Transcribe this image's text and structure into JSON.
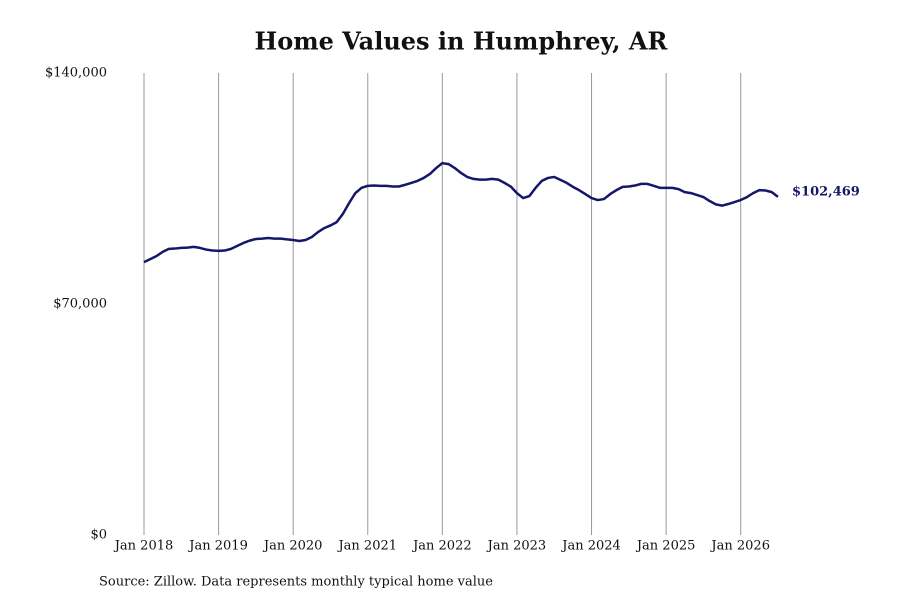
{
  "chart_data": {
    "type": "line",
    "title": "Home Values in Humphrey, AR",
    "source": "Source: Zillow. Data represents monthly typical home value",
    "x": [
      "2018-01",
      "2018-02",
      "2018-03",
      "2018-04",
      "2018-05",
      "2018-06",
      "2018-07",
      "2018-08",
      "2018-09",
      "2018-10",
      "2018-11",
      "2018-12",
      "2019-01",
      "2019-02",
      "2019-03",
      "2019-04",
      "2019-05",
      "2019-06",
      "2019-07",
      "2019-08",
      "2019-09",
      "2019-10",
      "2019-11",
      "2019-12",
      "2020-01",
      "2020-02",
      "2020-03",
      "2020-04",
      "2020-05",
      "2020-06",
      "2020-07",
      "2020-08",
      "2020-09",
      "2020-10",
      "2020-11",
      "2020-12",
      "2021-01",
      "2021-02",
      "2021-03",
      "2021-04",
      "2021-05",
      "2021-06",
      "2021-07",
      "2021-08",
      "2021-09",
      "2021-10",
      "2021-11",
      "2021-12",
      "2022-01",
      "2022-02",
      "2022-03",
      "2022-04",
      "2022-05",
      "2022-06",
      "2022-07",
      "2022-08",
      "2022-09",
      "2022-10",
      "2022-11",
      "2022-12",
      "2023-01",
      "2023-02",
      "2023-03",
      "2023-04",
      "2023-05",
      "2023-06",
      "2023-07",
      "2023-08",
      "2023-09",
      "2023-10",
      "2023-11",
      "2023-12",
      "2024-01",
      "2024-02",
      "2024-03",
      "2024-04",
      "2024-05",
      "2024-06",
      "2024-07",
      "2024-08",
      "2024-09",
      "2024-10",
      "2024-11",
      "2024-12",
      "2025-01",
      "2025-02",
      "2025-03",
      "2025-04",
      "2025-05",
      "2025-06",
      "2025-07",
      "2025-08",
      "2025-09",
      "2025-10",
      "2025-11",
      "2025-12",
      "2026-01",
      "2026-02",
      "2026-03",
      "2026-04",
      "2026-05",
      "2026-06",
      "2026-07"
    ],
    "series": [
      {
        "color": "#16166a",
        "values": [
          82700,
          83600,
          84500,
          85800,
          86700,
          86800,
          87000,
          87100,
          87300,
          87000,
          86500,
          86200,
          86100,
          86200,
          86700,
          87600,
          88500,
          89200,
          89700,
          89800,
          90000,
          89800,
          89800,
          89600,
          89400,
          89100,
          89400,
          90300,
          91800,
          93000,
          93800,
          94800,
          97300,
          100600,
          103600,
          105200,
          105800,
          105900,
          105800,
          105800,
          105600,
          105600,
          106100,
          106700,
          107300,
          108200,
          109400,
          111200,
          112700,
          112400,
          111200,
          109700,
          108500,
          107900,
          107700,
          107700,
          107900,
          107700,
          106700,
          105600,
          103600,
          102100,
          102700,
          105200,
          107300,
          108200,
          108500,
          107600,
          106700,
          105500,
          104500,
          103300,
          102100,
          101500,
          101800,
          103300,
          104500,
          105500,
          105600,
          105900,
          106400,
          106400,
          105800,
          105200,
          105200,
          105200,
          104800,
          103900,
          103600,
          103000,
          102400,
          101200,
          100200,
          99800,
          100300,
          100900,
          101500,
          102400,
          103600,
          104500,
          104400,
          103900,
          102469
        ],
        "value_labels": [
          null,
          null,
          null,
          null,
          null,
          null,
          null,
          null,
          null,
          null,
          null,
          null,
          null,
          null,
          null,
          null,
          null,
          null,
          null,
          null,
          null,
          null,
          null,
          null,
          null,
          null,
          null,
          null,
          null,
          null,
          null,
          null,
          null,
          null,
          null,
          null,
          null,
          null,
          null,
          null,
          null,
          null,
          null,
          null,
          null,
          null,
          null,
          null,
          null,
          null,
          null,
          null,
          null,
          null,
          null,
          null,
          null,
          null,
          null,
          null,
          null,
          null,
          null,
          null,
          null,
          null,
          null,
          null,
          null,
          null,
          null,
          null,
          null,
          null,
          null,
          null,
          null,
          null,
          null,
          null,
          null,
          null,
          null,
          null,
          null,
          null,
          null,
          null,
          null,
          null,
          null,
          null,
          null,
          null,
          null,
          null,
          null,
          null,
          null,
          null,
          null,
          null,
          "$102,469"
        ]
      }
    ],
    "xlim": [
      "2018-01",
      "2026-07"
    ],
    "xticks": [
      {
        "value": "2018-01",
        "label": "Jan 2018"
      },
      {
        "value": "2019-01",
        "label": "Jan 2019"
      },
      {
        "value": "2020-01",
        "label": "Jan 2020"
      },
      {
        "value": "2021-01",
        "label": "Jan 2021"
      },
      {
        "value": "2022-01",
        "label": "Jan 2022"
      },
      {
        "value": "2023-01",
        "label": "Jan 2023"
      },
      {
        "value": "2024-01",
        "label": "Jan 2024"
      },
      {
        "value": "2025-01",
        "label": "Jan 2025"
      },
      {
        "value": "2026-01",
        "label": "Jan 2026"
      }
    ],
    "ylim": [
      0,
      140000
    ],
    "yticks": [
      {
        "value": 0,
        "label": "$0"
      },
      {
        "value": 70000,
        "label": "$70,000"
      },
      {
        "value": 140000,
        "label": "$140,000"
      }
    ],
    "xgrid": true,
    "ygrid": false
  }
}
